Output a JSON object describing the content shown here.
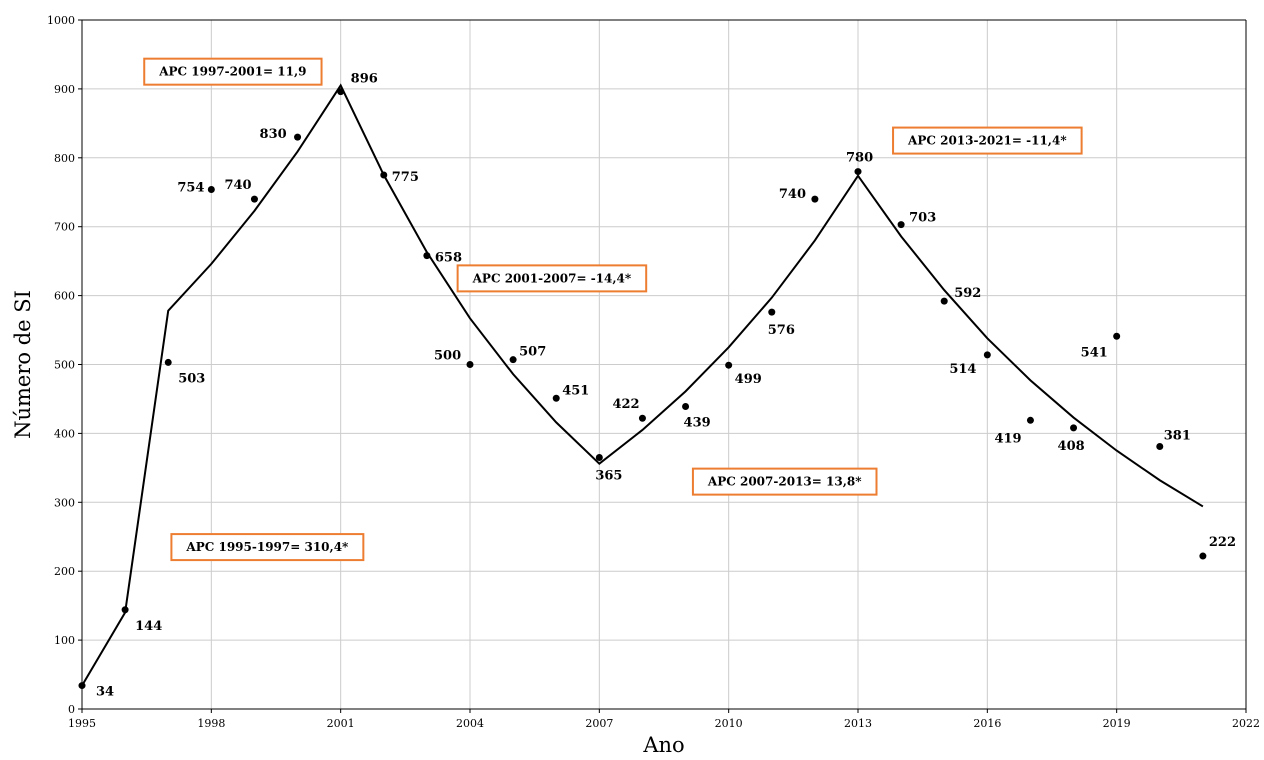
{
  "chart_data": {
    "type": "scatter",
    "title": "",
    "xlabel": "Ano",
    "ylabel": "Número de SI",
    "xlim": [
      1995,
      2022
    ],
    "ylim": [
      0,
      1000
    ],
    "grid": true,
    "x_ticks": [
      "1995",
      "1998",
      "2001",
      "2004",
      "2007",
      "2010",
      "2013",
      "2016",
      "2019",
      "2022"
    ],
    "y_ticks": [
      "0",
      "100",
      "200",
      "300",
      "400",
      "500",
      "600",
      "700",
      "800",
      "900",
      "1000"
    ],
    "observed": {
      "x": [
        1995,
        1996,
        1997,
        1998,
        1999,
        2000,
        2001,
        2002,
        2003,
        2004,
        2005,
        2006,
        2007,
        2008,
        2009,
        2010,
        2011,
        2012,
        2013,
        2014,
        2015,
        2016,
        2017,
        2018,
        2019,
        2020,
        2021
      ],
      "y": [
        34,
        144,
        503,
        754,
        740,
        830,
        896,
        775,
        658,
        500,
        507,
        451,
        365,
        422,
        439,
        499,
        576,
        740,
        780,
        703,
        592,
        514,
        419,
        408,
        541,
        381,
        222
      ],
      "labels": [
        "34",
        "144",
        "503",
        "754",
        "740",
        "830",
        "896",
        "775",
        "658",
        "500",
        "507",
        "451",
        "365",
        "422",
        "439",
        "499",
        "576",
        "740",
        "780",
        "703",
        "592",
        "514",
        "419",
        "408",
        "541",
        "381",
        "222"
      ]
    },
    "fitted": {
      "x": [
        1995,
        1996,
        1997,
        1998,
        1999,
        2000,
        2001,
        2002,
        2003,
        2004,
        2005,
        2006,
        2007,
        2008,
        2009,
        2010,
        2011,
        2012,
        2013,
        2014,
        2015,
        2016,
        2017,
        2018,
        2019,
        2020,
        2021
      ],
      "y": [
        34,
        140,
        578,
        646,
        723,
        809,
        905,
        775,
        663,
        567,
        486,
        416,
        356,
        405,
        461,
        525,
        597,
        680,
        774,
        686,
        608,
        538,
        477,
        423,
        375,
        332,
        294
      ]
    },
    "annotations": [
      {
        "text": "APC 1997-2001= 11,9",
        "x": 1998.5,
        "y": 925
      },
      {
        "text": "APC 2001-2007= -14,4*",
        "x": 2005.9,
        "y": 625
      },
      {
        "text": "APC 1995-1997= 310,4*",
        "x": 1999.3,
        "y": 235
      },
      {
        "text": "APC 2007-2013= 13,8*",
        "x": 2011.3,
        "y": 330
      },
      {
        "text": "APC 2013-2021= -11,4*",
        "x": 2016.0,
        "y": 825
      }
    ]
  }
}
